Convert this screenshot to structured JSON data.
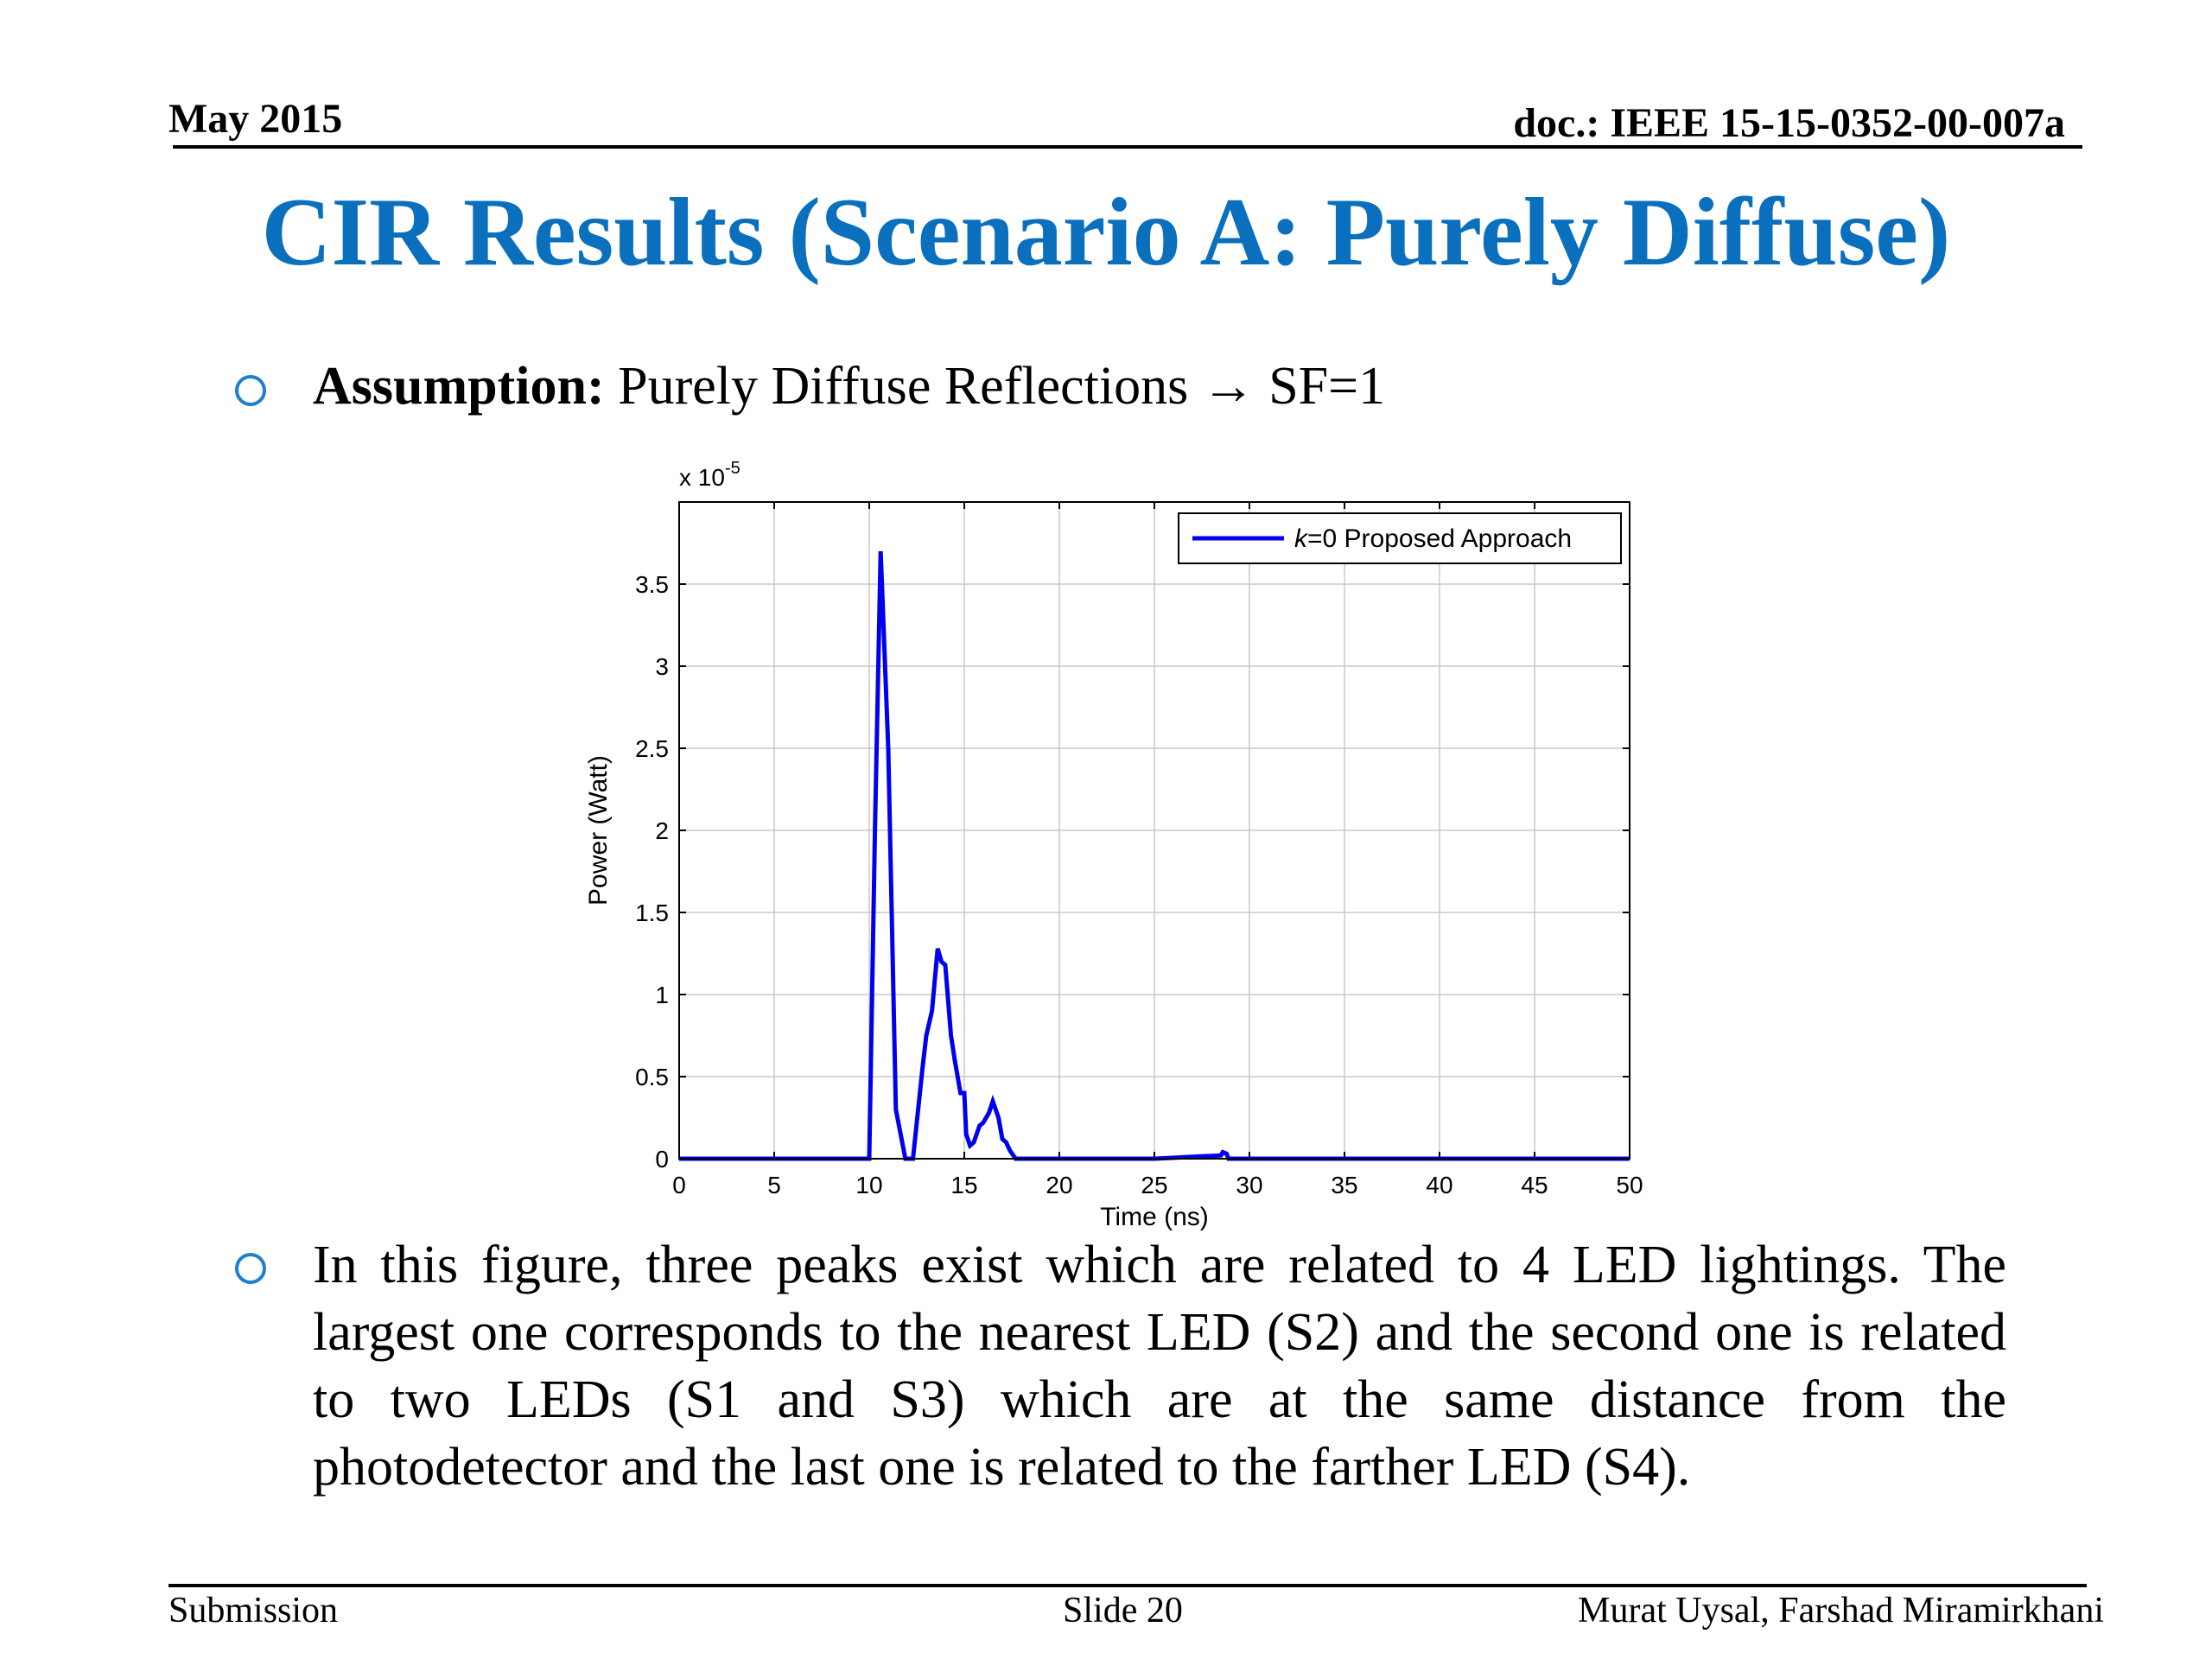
{
  "header": {
    "date": "May 2015",
    "doc": "doc.: IEEE 15-15-0352-00-007a"
  },
  "title": "CIR Results (Scenario A: Purely Diffuse)",
  "bullets": [
    {
      "lead": "Assumption:",
      "text": " Purely Diffuse Reflections →  SF=1"
    },
    {
      "text": "In this figure, three peaks exist which are related to 4 LED lightings. The largest one corresponds to the nearest LED (S2) and the second one is related to two LEDs (S1 and S3) which are at the same distance from the photodetector and the last one is related to the farther LED (S4)."
    }
  ],
  "chart_data": {
    "type": "line",
    "xlabel": "Time (ns)",
    "ylabel": "Power (Watt)",
    "y_multiplier": "x 10",
    "y_exponent": "-5",
    "xlim": [
      0,
      50
    ],
    "ylim": [
      0,
      4.0
    ],
    "xticks": [
      0,
      5,
      10,
      15,
      20,
      25,
      30,
      35,
      40,
      45,
      50
    ],
    "yticks": [
      0,
      0.5,
      1,
      1.5,
      2,
      2.5,
      3,
      3.5
    ],
    "grid": true,
    "legend_position": "top-right",
    "colors": {
      "series": "#0000ee"
    },
    "series": [
      {
        "name": "k=0 Proposed Approach",
        "x": [
          0,
          10.0,
          10.3,
          10.6,
          10.8,
          11.0,
          11.4,
          11.9,
          12.3,
          12.8,
          13.0,
          13.3,
          13.6,
          13.8,
          14.0,
          14.3,
          14.5,
          14.8,
          15.0,
          15.1,
          15.3,
          15.5,
          15.8,
          16.0,
          16.3,
          16.5,
          16.8,
          17.0,
          17.2,
          17.4,
          17.7,
          18.0,
          20,
          25,
          28.5,
          28.6,
          28.8,
          28.9,
          29.2,
          50
        ],
        "y": [
          0,
          0,
          2.0,
          3.7,
          3.1,
          2.5,
          0.3,
          0,
          0,
          0.55,
          0.75,
          0.9,
          1.28,
          1.2,
          1.18,
          0.75,
          0.6,
          0.4,
          0.4,
          0.15,
          0.08,
          0.1,
          0.2,
          0.22,
          0.28,
          0.35,
          0.25,
          0.12,
          0.1,
          0.05,
          0,
          0,
          0,
          0,
          0.02,
          0.04,
          0.03,
          0,
          0,
          0
        ]
      }
    ]
  },
  "footer": {
    "left": "Submission",
    "middle": "Slide 20",
    "right": "Murat Uysal, Farshad Miramirkhani"
  }
}
